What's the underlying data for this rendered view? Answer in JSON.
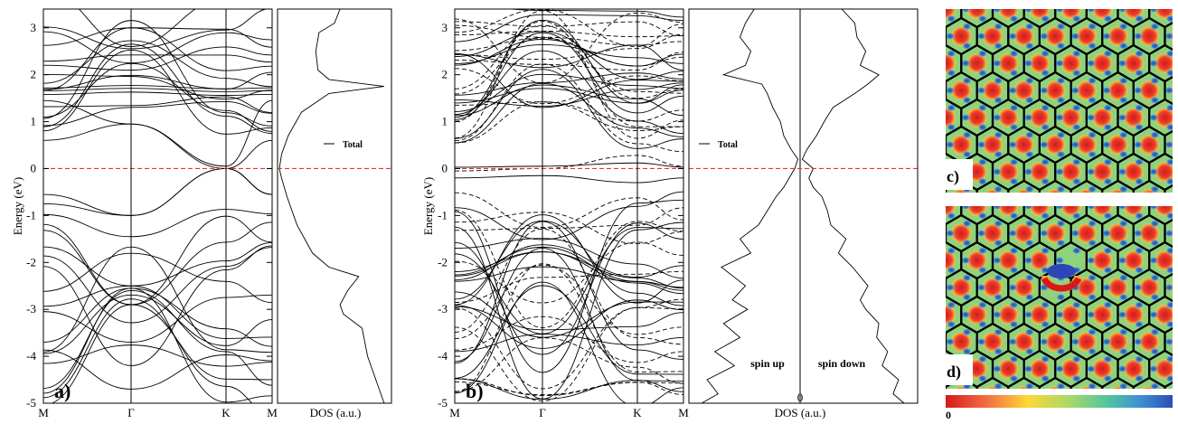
{
  "chart_data": [
    {
      "panel": "a",
      "type": "line",
      "description_panel_label": "a)",
      "ylabel": "Energy (eV)",
      "ylim": [
        -5,
        3.4
      ],
      "yticks": [
        "-5",
        "-4",
        "-3",
        "-2",
        "-1",
        "0",
        "1",
        "2",
        "3"
      ],
      "kpoints": [
        "M",
        "Γ",
        "K",
        "M"
      ],
      "fermi_level": 0,
      "gamma_energies": [
        -4.7,
        -4.2,
        -3.7,
        -3.2,
        -2.9,
        -2.55,
        -2.5,
        -1.0,
        0.95,
        2.25,
        2.6,
        3.0
      ],
      "k_crossing": 0,
      "m_energies": [
        -4.8,
        -4.3,
        -3.9,
        -3.6,
        -3.3,
        -2.8,
        -2.05,
        -1.75,
        -0.75,
        -0.55,
        0.6,
        1.45,
        1.6,
        1.7,
        2.2,
        2.6,
        2.9,
        3.35
      ]
    },
    {
      "panel": "a-dos",
      "type": "line",
      "xlabel": "DOS (a.u.)",
      "legend": [
        "Total"
      ],
      "series": [
        {
          "name": "Total",
          "energy": [
            -5.0,
            -4.0,
            -3.4,
            -3.1,
            -2.9,
            -2.6,
            -2.3,
            -2.1,
            -1.8,
            -1.2,
            -0.6,
            -0.2,
            0.0,
            0.3,
            0.7,
            1.2,
            1.6,
            1.75,
            1.9,
            2.1,
            2.5,
            2.9,
            3.1,
            3.4
          ],
          "dos": [
            0.95,
            0.8,
            0.75,
            0.58,
            0.55,
            0.62,
            0.72,
            0.45,
            0.3,
            0.16,
            0.07,
            0.02,
            0.0,
            0.02,
            0.08,
            0.2,
            0.45,
            0.95,
            0.45,
            0.35,
            0.33,
            0.36,
            0.5,
            0.55
          ]
        }
      ]
    },
    {
      "panel": "b",
      "type": "line",
      "description_panel_label": "b)",
      "ylabel": "Energy (eV)",
      "ylim": [
        -5,
        3.4
      ],
      "yticks": [
        "-5",
        "-4",
        "-3",
        "-2",
        "-1",
        "0",
        "1",
        "2",
        "3"
      ],
      "kpoints": [
        "M",
        "Γ",
        "K",
        "M"
      ],
      "fermi_level": 0,
      "series_styles": [
        "spin up (solid)",
        "spin down (dashed)"
      ]
    },
    {
      "panel": "b-dos",
      "type": "line",
      "xlabel": "DOS (a.u.)",
      "zero_label": "0",
      "legend": [
        "Total"
      ],
      "annotations": [
        "spin up",
        "spin down"
      ],
      "series": [
        {
          "name": "spin up",
          "energy": [
            -5.0,
            -4.8,
            -4.5,
            -4.2,
            -3.9,
            -3.6,
            -3.3,
            -3.0,
            -2.8,
            -2.5,
            -2.1,
            -1.8,
            -1.5,
            -1.2,
            -0.9,
            -0.6,
            -0.4,
            -0.2,
            0.0,
            0.2,
            0.4,
            0.7,
            1.0,
            1.3,
            1.6,
            1.8,
            2.0,
            2.2,
            2.5,
            2.8,
            3.1,
            3.4
          ],
          "dos": [
            0.9,
            0.75,
            0.85,
            0.6,
            0.78,
            0.55,
            0.7,
            0.48,
            0.62,
            0.5,
            0.72,
            0.45,
            0.55,
            0.38,
            0.3,
            0.22,
            0.15,
            0.1,
            0.05,
            0.02,
            0.08,
            0.15,
            0.18,
            0.25,
            0.3,
            0.35,
            0.7,
            0.5,
            0.45,
            0.55,
            0.5,
            0.42
          ]
        },
        {
          "name": "spin down",
          "energy": [
            -5.0,
            -4.8,
            -4.5,
            -4.2,
            -3.9,
            -3.6,
            -3.3,
            -3.0,
            -2.8,
            -2.5,
            -2.1,
            -1.8,
            -1.5,
            -1.2,
            -0.9,
            -0.6,
            -0.4,
            -0.2,
            0.0,
            0.2,
            0.4,
            0.7,
            1.0,
            1.3,
            1.6,
            1.8,
            2.0,
            2.2,
            2.5,
            2.8,
            3.1,
            3.4
          ],
          "dos": [
            0.95,
            0.85,
            0.9,
            0.75,
            0.8,
            0.7,
            0.72,
            0.6,
            0.55,
            0.62,
            0.48,
            0.35,
            0.42,
            0.28,
            0.25,
            0.2,
            0.12,
            0.08,
            0.12,
            0.02,
            0.06,
            0.15,
            0.22,
            0.3,
            0.5,
            0.62,
            0.72,
            0.55,
            0.6,
            0.52,
            0.5,
            0.38
          ]
        }
      ]
    }
  ],
  "panel_labels": {
    "a": "a)",
    "b": "b)",
    "c": "c)",
    "d": "d)"
  },
  "colorbar": {
    "start_label": "0",
    "colors": [
      "#d7191c",
      "#f46d43",
      "#fdd835",
      "#a6d96a",
      "#4fc3a1",
      "#3f8fd2",
      "#2b4fb5"
    ]
  },
  "map_colors": {
    "background": "#8fd27c",
    "hot": "#e2392d",
    "warm": "#f4a640",
    "cold": "#3452c8",
    "lattice": "#000000"
  }
}
